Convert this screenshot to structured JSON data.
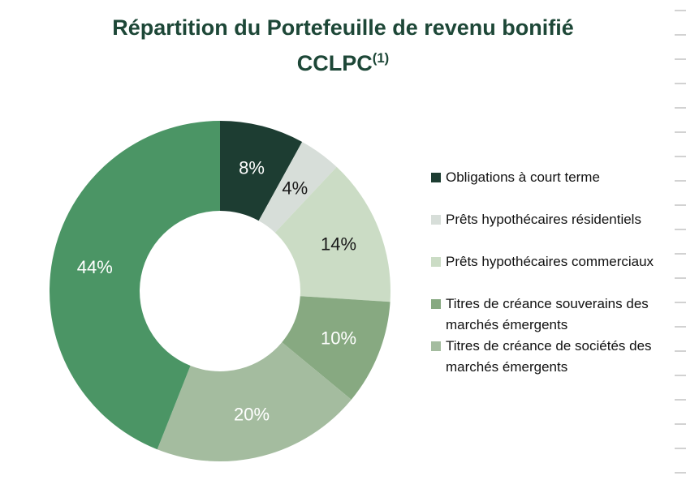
{
  "page": {
    "background": "#ffffff"
  },
  "title": {
    "line1": "Répartition du Portefeuille de revenu bonifié",
    "line2": "CCLPC",
    "line2_superscript": "(1)",
    "color": "#1d4737"
  },
  "chart_data": {
    "type": "pie",
    "subtype": "donut",
    "title": "Répartition du Portefeuille de revenu bonifié CCLPC(1)",
    "direction": "clockwise",
    "start_angle_deg": 0,
    "donut_hole_ratio": 0.47,
    "legend_position": "right",
    "segments": [
      {
        "label": "Obligations à court terme",
        "value": 8,
        "display": "8%",
        "color": "#1d3d32",
        "label_color": "#ffffff",
        "in_legend": true
      },
      {
        "label": "Prêts hypothécaires résidentiels",
        "value": 4,
        "display": "4%",
        "color": "#d7ded9",
        "label_color": "#1a1a1a",
        "in_legend": true
      },
      {
        "label": "Prêts hypothécaires commerciaux",
        "value": 14,
        "display": "14%",
        "color": "#cbdcc5",
        "label_color": "#1a1a1a",
        "in_legend": true
      },
      {
        "label": "Titres de créance souverains des marchés émergents",
        "value": 10,
        "display": "10%",
        "color": "#87a981",
        "label_color": "#ffffff",
        "in_legend": true
      },
      {
        "label": "Titres de créance de sociétés des marchés émergents",
        "value": 20,
        "display": "20%",
        "color": "#a4bc9f",
        "label_color": "#ffffff",
        "in_legend": true
      },
      {
        "label": "",
        "value": 44,
        "display": "44%",
        "color": "#4b9565",
        "label_color": "#ffffff",
        "in_legend": false
      }
    ]
  },
  "decor": {
    "edge_tick_count": 20,
    "edge_tick_color": "#d2d2d2"
  }
}
